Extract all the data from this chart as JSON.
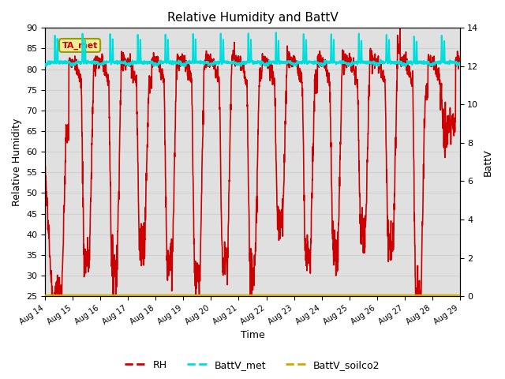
{
  "title": "Relative Humidity and BattV",
  "xlabel": "Time",
  "ylabel_left": "Relative Humidity",
  "ylabel_right": "BattV",
  "xlim": [
    0,
    15
  ],
  "ylim_left": [
    25,
    90
  ],
  "ylim_right": [
    0,
    14
  ],
  "x_tick_labels": [
    "Aug 14",
    "Aug 15",
    "Aug 16",
    "Aug 17",
    "Aug 18",
    "Aug 19",
    "Aug 20",
    "Aug 21",
    "Aug 22",
    "Aug 23",
    "Aug 24",
    "Aug 25",
    "Aug 26",
    "Aug 27",
    "Aug 28",
    "Aug 29"
  ],
  "yticks_left": [
    25,
    30,
    35,
    40,
    45,
    50,
    55,
    60,
    65,
    70,
    75,
    80,
    85,
    90
  ],
  "yticks_right": [
    0,
    2,
    4,
    6,
    8,
    10,
    12,
    14
  ],
  "grid_color": "#d0d0d0",
  "bg_color": "#e0e0e0",
  "rh_color": "#cc0000",
  "battv_met_color": "#00dddd",
  "battv_soilco2_color": "#ccaa00",
  "legend_box_facecolor": "#eeee99",
  "legend_box_edge": "#999900",
  "annotation_text": "TA_met",
  "annotation_color": "#cc0000",
  "lw_rh": 1.2,
  "lw_batt": 1.5,
  "title_fontsize": 11,
  "axis_label_fontsize": 9,
  "tick_fontsize": 8
}
